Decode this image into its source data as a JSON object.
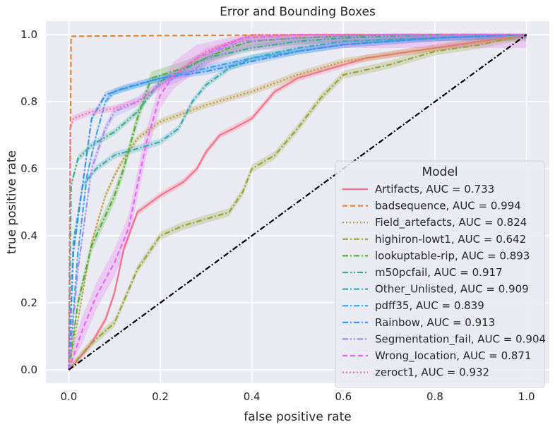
{
  "chart_data": {
    "type": "line",
    "title": "Error and Bounding Boxes",
    "xlabel": "false positive rate",
    "ylabel": "true positive rate",
    "xlim": [
      -0.05,
      1.05
    ],
    "ylim": [
      -0.04,
      1.04
    ],
    "xticks": [
      "0.0",
      "0.2",
      "0.4",
      "0.6",
      "0.8",
      "1.0"
    ],
    "yticks": [
      "0.0",
      "0.2",
      "0.4",
      "0.6",
      "0.8",
      "1.0"
    ],
    "grid": true,
    "legend": {
      "title": "Model",
      "placement": "lower-right"
    },
    "diagonal": {
      "x": [
        0,
        1
      ],
      "y": [
        0,
        1
      ],
      "color": "#000000",
      "style": "dashdot"
    },
    "series": [
      {
        "label": "Artifacts, AUC = 0.733",
        "color": "#f77189",
        "dash": "solid",
        "band": 0.01,
        "x": [
          0,
          0.02,
          0.05,
          0.08,
          0.1,
          0.12,
          0.15,
          0.2,
          0.25,
          0.28,
          0.3,
          0.33,
          0.36,
          0.4,
          0.45,
          0.5,
          0.55,
          0.6,
          0.65,
          0.7,
          0.8,
          0.9,
          1.0
        ],
        "y": [
          0,
          0.03,
          0.08,
          0.15,
          0.23,
          0.36,
          0.47,
          0.52,
          0.56,
          0.6,
          0.65,
          0.7,
          0.72,
          0.75,
          0.83,
          0.87,
          0.89,
          0.91,
          0.93,
          0.94,
          0.96,
          0.98,
          1.0
        ]
      },
      {
        "label": "badsequence, AUC = 0.994",
        "color": "#e68332",
        "dash": "dashed",
        "band": 0.0,
        "x": [
          0,
          0.005,
          0.2,
          0.6,
          1.0
        ],
        "y": [
          0,
          0.995,
          0.997,
          1.0,
          1.0
        ]
      },
      {
        "label": "Field_artefacts, AUC = 0.824",
        "color": "#bb9832",
        "dash": "dotted",
        "band": 0.01,
        "x": [
          0,
          0.02,
          0.05,
          0.08,
          0.1,
          0.12,
          0.15,
          0.2,
          0.3,
          0.4,
          0.5,
          0.6,
          0.7,
          0.8,
          0.9,
          1.0
        ],
        "y": [
          0,
          0.15,
          0.38,
          0.52,
          0.58,
          0.63,
          0.69,
          0.74,
          0.79,
          0.83,
          0.88,
          0.92,
          0.94,
          0.96,
          0.98,
          1.0
        ]
      },
      {
        "label": "highiron-lowt1, AUC = 0.642",
        "color": "#97a431",
        "dash": "dashdot",
        "band": 0.012,
        "x": [
          0,
          0.05,
          0.1,
          0.15,
          0.2,
          0.25,
          0.3,
          0.35,
          0.38,
          0.4,
          0.45,
          0.5,
          0.55,
          0.6,
          0.7,
          0.8,
          0.9,
          1.0
        ],
        "y": [
          0,
          0.08,
          0.14,
          0.3,
          0.4,
          0.43,
          0.45,
          0.47,
          0.53,
          0.6,
          0.64,
          0.72,
          0.81,
          0.88,
          0.91,
          0.95,
          0.97,
          1.0
        ]
      },
      {
        "label": "lookuptable-rip, AUC = 0.893",
        "color": "#50b131",
        "dash": "dashdot",
        "band": 0.02,
        "x": [
          0,
          0.02,
          0.05,
          0.08,
          0.1,
          0.12,
          0.15,
          0.18,
          0.25,
          0.3,
          0.35,
          0.4,
          0.5,
          0.7,
          1.0
        ],
        "y": [
          0,
          0.2,
          0.37,
          0.46,
          0.52,
          0.6,
          0.75,
          0.87,
          0.9,
          0.93,
          0.96,
          0.98,
          0.99,
          1.0,
          1.0
        ]
      },
      {
        "label": "m50pcfail, AUC = 0.917",
        "color": "#34ae91",
        "dash": "dashdotdot",
        "band": 0.01,
        "x": [
          0,
          0.005,
          0.02,
          0.05,
          0.1,
          0.15,
          0.2,
          0.3,
          0.4,
          0.5,
          0.6,
          0.8,
          1.0
        ],
        "y": [
          0,
          0.55,
          0.63,
          0.67,
          0.71,
          0.77,
          0.86,
          0.93,
          0.96,
          0.98,
          0.99,
          1.0,
          1.0
        ]
      },
      {
        "label": "Other_Unlisted, AUC = 0.909",
        "color": "#37abb5",
        "dash": "dashdot",
        "band": 0.01,
        "x": [
          0,
          0.01,
          0.03,
          0.06,
          0.1,
          0.15,
          0.2,
          0.24,
          0.27,
          0.3,
          0.35,
          0.4,
          0.5,
          0.6,
          0.8,
          1.0
        ],
        "y": [
          0,
          0.38,
          0.55,
          0.6,
          0.64,
          0.66,
          0.68,
          0.72,
          0.8,
          0.85,
          0.9,
          0.93,
          0.96,
          0.98,
          0.99,
          1.0
        ]
      },
      {
        "label": "pdff35, AUC = 0.839",
        "color": "#3ba3ec",
        "dash": "dashdot",
        "band": 0.01,
        "x": [
          0,
          0.02,
          0.04,
          0.06,
          0.08,
          0.1,
          0.2,
          0.3,
          0.4,
          0.5,
          0.6,
          0.8,
          1.0
        ],
        "y": [
          0,
          0.35,
          0.58,
          0.7,
          0.8,
          0.83,
          0.87,
          0.9,
          0.93,
          0.95,
          0.97,
          0.99,
          1.0
        ]
      },
      {
        "label": "Rainbow, AUC = 0.913",
        "color": "#3a8fec",
        "dash": "dashdot",
        "band": 0.01,
        "x": [
          0,
          0.01,
          0.03,
          0.05,
          0.08,
          0.12,
          0.2,
          0.3,
          0.4,
          0.5,
          0.6,
          0.8,
          1.0
        ],
        "y": [
          0,
          0.35,
          0.55,
          0.75,
          0.82,
          0.84,
          0.87,
          0.89,
          0.92,
          0.95,
          0.97,
          0.99,
          1.0
        ]
      },
      {
        "label": "Segmentation_fail, AUC = 0.904",
        "color": "#a48cf4",
        "dash": "dashdotdot",
        "band": 0.015,
        "x": [
          0,
          0.02,
          0.05,
          0.08,
          0.1,
          0.15,
          0.2,
          0.28,
          0.32,
          0.38,
          0.5,
          0.7,
          1.0
        ],
        "y": [
          0,
          0.3,
          0.6,
          0.72,
          0.77,
          0.8,
          0.85,
          0.9,
          0.95,
          0.98,
          0.99,
          1.0,
          1.0
        ]
      },
      {
        "label": "Wrong_location, AUC = 0.871",
        "color": "#e866f4",
        "dash": "dashed",
        "band": 0.04,
        "x": [
          0,
          0.03,
          0.06,
          0.1,
          0.13,
          0.15,
          0.17,
          0.2,
          0.23,
          0.28,
          0.38,
          0.5,
          0.7,
          1.0
        ],
        "y": [
          0,
          0.12,
          0.22,
          0.32,
          0.42,
          0.55,
          0.68,
          0.82,
          0.88,
          0.93,
          0.99,
          1.0,
          1.0,
          1.0
        ]
      },
      {
        "label": "zeroct1, AUC = 0.932",
        "color": "#f668c2",
        "dash": "dotted",
        "band": 0.01,
        "x": [
          0,
          0.003,
          0.01,
          0.05,
          0.1,
          0.15,
          0.2,
          0.25,
          0.3,
          0.4,
          0.6,
          0.8,
          1.0
        ],
        "y": [
          0,
          0.72,
          0.75,
          0.77,
          0.78,
          0.8,
          0.85,
          0.9,
          0.95,
          1.0,
          1.0,
          1.0,
          1.0
        ]
      }
    ]
  }
}
